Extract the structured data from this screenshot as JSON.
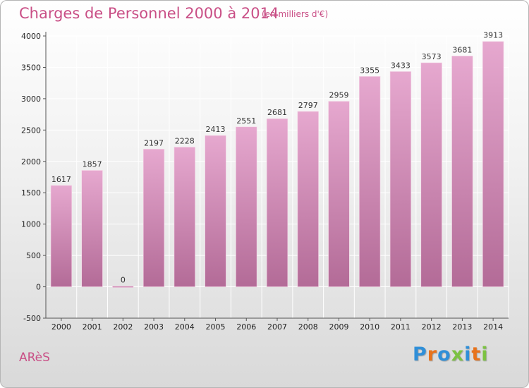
{
  "header": {
    "title": "Charges de Personnel 2000 à 2014",
    "subtitle": "(en milliers d'€)"
  },
  "footer": {
    "commune": "ARèS",
    "logo_text": [
      "P",
      "r",
      "o",
      "x",
      "i",
      "t",
      "i"
    ]
  },
  "colors": {
    "title": "#c94f86",
    "bar_top": "#e6a8cf",
    "bar_bottom": "#b36b97",
    "grid": "#ffffff"
  },
  "chart_data": {
    "type": "bar",
    "title": "Charges de Personnel 2000 à 2014",
    "subtitle": "(en milliers d'€)",
    "xlabel": "",
    "ylabel": "",
    "categories": [
      "2000",
      "2001",
      "2002",
      "2003",
      "2004",
      "2005",
      "2006",
      "2007",
      "2008",
      "2009",
      "2010",
      "2011",
      "2012",
      "2013",
      "2014"
    ],
    "values": [
      1617,
      1857,
      0,
      2197,
      2228,
      2413,
      2551,
      2681,
      2797,
      2959,
      3355,
      3433,
      3573,
      3681,
      3913
    ],
    "ylim": [
      -500,
      4000
    ],
    "yticks": [
      -500,
      0,
      500,
      1000,
      1500,
      2000,
      2500,
      3000,
      3500,
      4000
    ],
    "grid": true,
    "legend": "none"
  }
}
